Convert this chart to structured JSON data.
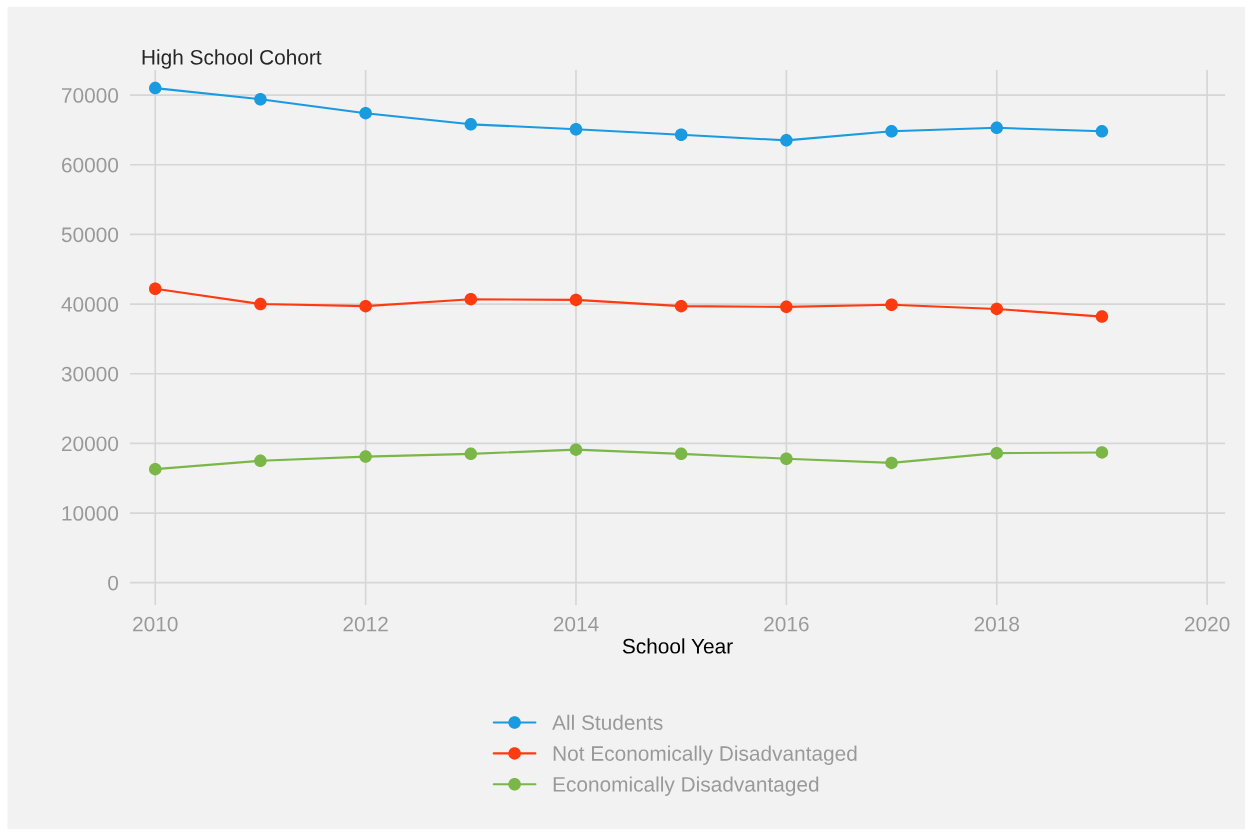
{
  "chart_data": {
    "type": "line",
    "title": "High School Cohort",
    "xlabel": "School Year",
    "x": [
      2010,
      2011,
      2012,
      2013,
      2014,
      2015,
      2016,
      2017,
      2018,
      2019
    ],
    "series": [
      {
        "name": "All Students",
        "color": "#1a9ae0",
        "values": [
          71000,
          69400,
          67400,
          65800,
          65100,
          64300,
          63500,
          64800,
          65300,
          64800
        ]
      },
      {
        "name": "Not Economically Disadvantaged",
        "color": "#fe3a10",
        "values": [
          42200,
          40000,
          39700,
          40700,
          40600,
          39700,
          39600,
          39900,
          39300,
          38200
        ]
      },
      {
        "name": "Economically Disadvantaged",
        "color": "#7ab648",
        "values": [
          16300,
          17500,
          18100,
          18500,
          19100,
          18500,
          17800,
          17200,
          18600,
          18700
        ]
      }
    ],
    "xlim": [
      2009.76,
      2020.17
    ],
    "xticks": [
      2010,
      2012,
      2014,
      2016,
      2018,
      2020
    ],
    "ylim": [
      -3200,
      73600
    ],
    "yticks": [
      0,
      10000,
      20000,
      30000,
      40000,
      50000,
      60000,
      70000
    ],
    "grid": true,
    "legend": "bottom",
    "marker": "circle",
    "line_style": "solid"
  }
}
